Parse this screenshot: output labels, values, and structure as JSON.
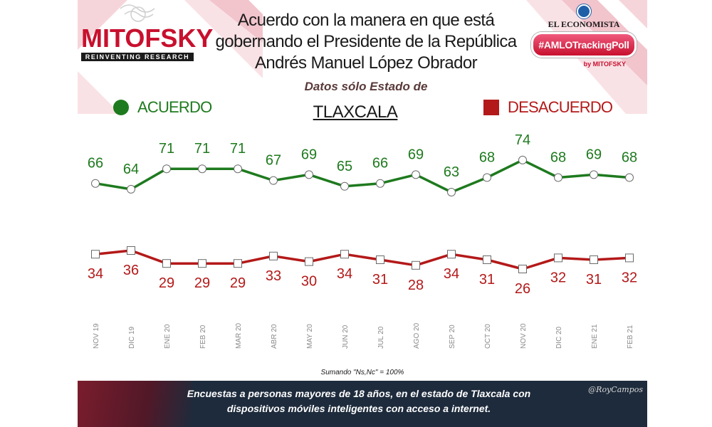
{
  "header": {
    "title_lines": [
      "Acuerdo con la manera en que está",
      "gobernando el Presidente de la República",
      "Andrés Manuel López Obrador"
    ],
    "subtitle": "Datos sólo Estado de",
    "state": "TLAXCALA"
  },
  "logos": {
    "mitofsky_name": "MITOFSKY",
    "mitofsky_tagline": "REINVENTING RESEARCH",
    "economista": "EL ECONOMISTA",
    "hashtag": "#AMLOTrackingPoll",
    "by": "by MITOFSKY"
  },
  "legend": {
    "acuerdo": "ACUERDO",
    "desacuerdo": "DESACUERDO"
  },
  "colors": {
    "acuerdo": "#1e7a1e",
    "desacuerdo": "#b41919",
    "footer_bg": "#1e2b3c",
    "brand_red": "#c8102e"
  },
  "chart_data": {
    "type": "line",
    "categories": [
      "NOV 19",
      "DIC 19",
      "ENE 20",
      "FEB 20",
      "MAR 20",
      "ABR 20",
      "MAY 20",
      "JUN 20",
      "JUL 20",
      "AGO 20",
      "SEP 20",
      "OCT 20",
      "NOV 20",
      "DIC 20",
      "ENE 21",
      "FEB 21"
    ],
    "series": [
      {
        "name": "ACUERDO",
        "values": [
          66,
          64,
          71,
          71,
          71,
          67,
          69,
          65,
          66,
          69,
          63,
          68,
          74,
          68,
          69,
          68
        ]
      },
      {
        "name": "DESACUERDO",
        "values": [
          34,
          36,
          29,
          29,
          29,
          33,
          30,
          34,
          31,
          28,
          34,
          31,
          26,
          32,
          31,
          32
        ]
      }
    ],
    "grid": false,
    "legend_position": "top"
  },
  "note": "Sumando \"Ns,Nc\" = 100%",
  "footer": {
    "text_line1": "Encuestas a personas mayores de 18 años, en el estado de Tlaxcala con",
    "text_line2": "dispositivos móviles inteligentes con acceso a internet.",
    "signature": "@RoyCampos"
  }
}
